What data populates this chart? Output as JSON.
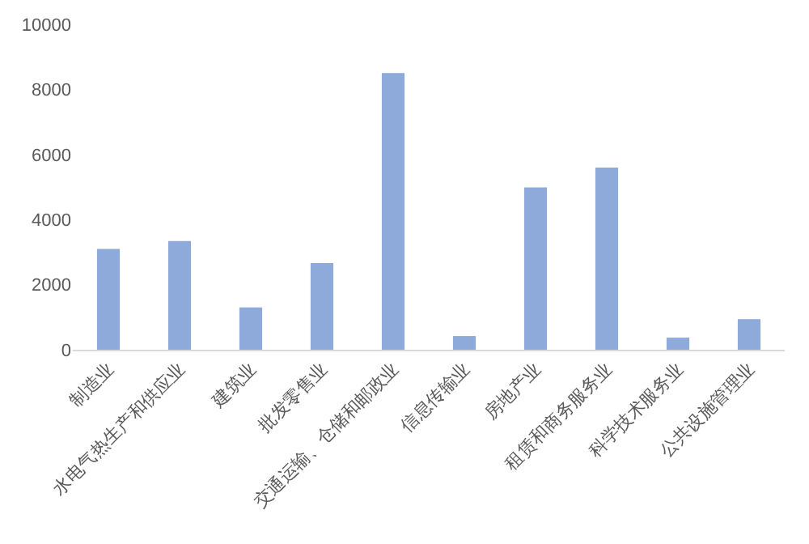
{
  "chart_data": {
    "type": "bar",
    "categories": [
      "制造业",
      "水电气热生产和供应业",
      "建筑业",
      "批发零售业",
      "交通运输、仓储和邮政业",
      "信息传输业",
      "房地产业",
      "租赁和商务服务业",
      "科学技术服务业",
      "公共设施管理业"
    ],
    "values": [
      3100,
      3340,
      1300,
      2660,
      8500,
      420,
      4990,
      5600,
      370,
      940
    ],
    "color": "#8eaadb",
    "ylim": [
      0,
      10000
    ],
    "yticks": [
      0,
      2000,
      4000,
      6000,
      8000,
      10000
    ]
  }
}
